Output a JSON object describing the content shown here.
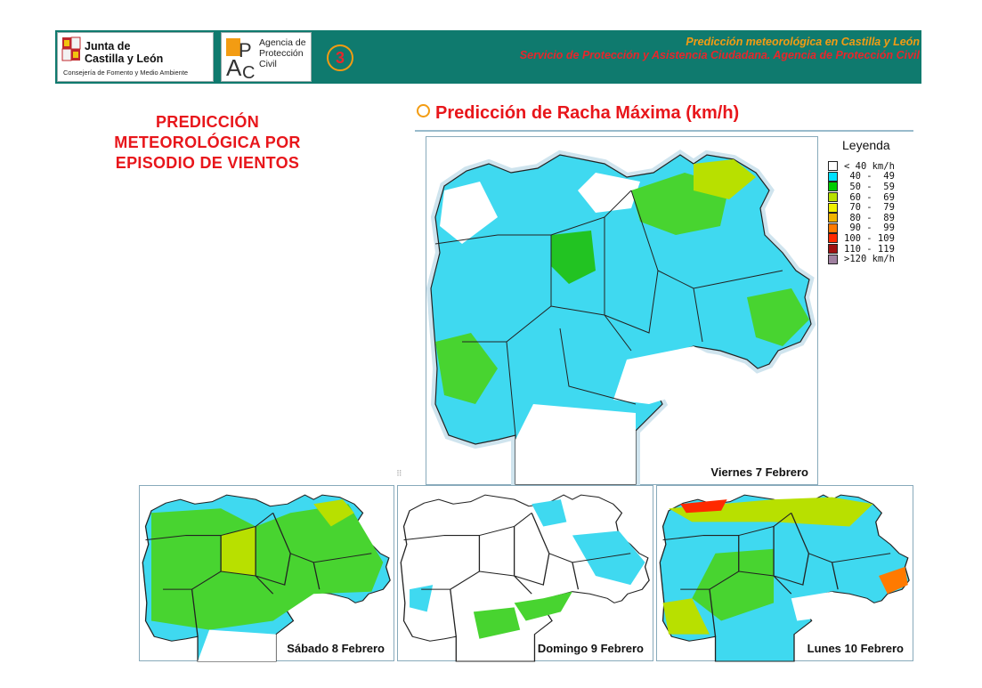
{
  "header": {
    "org_name": "Junta de Castilla y León",
    "org_department": "Consejería de Fomento y Medio Ambiente",
    "agency_name": "Agencia de Protección Civil",
    "agency_initials": "APC",
    "page_number": "3",
    "title_line1": "Predicción meteorológica en Castilla y León",
    "title_line2": "Servicio de Protección y Asistencia Ciudadana. Agencia de Protección Civil"
  },
  "left_title": "PREDICCIÓN METEOROLÓGICA POR EPISODIO DE VIENTOS",
  "section_title": "Predicción de Racha Máxima (km/h)",
  "legend": {
    "title": "Leyenda",
    "items": [
      {
        "label": "< 40 km/h",
        "color": "#ffffff"
      },
      {
        "label": " 40 -  49",
        "color": "#00e0ff"
      },
      {
        "label": " 50 -  59",
        "color": "#00cc00"
      },
      {
        "label": " 60 -  69",
        "color": "#b8e000"
      },
      {
        "label": " 70 -  79",
        "color": "#f0f000"
      },
      {
        "label": " 80 -  89",
        "color": "#f0b400"
      },
      {
        "label": " 90 -  99",
        "color": "#ff7a00"
      },
      {
        "label": "100 - 109",
        "color": "#ff2a00"
      },
      {
        "label": "110 - 119",
        "color": "#a01010"
      },
      {
        "label": ">120 km/h",
        "color": "#a080a0"
      }
    ]
  },
  "maps": {
    "main": {
      "label": "Viernes 7 Febrero"
    },
    "day2": {
      "label": "Sábado 8 Febrero"
    },
    "day3": {
      "label": "Domingo 9 Febrero"
    },
    "day4": {
      "label": "Lunes 10 Febrero"
    }
  },
  "colors": {
    "header_band": "#0f7a6e",
    "title_red": "#e8161b",
    "accent_orange": "#f39c12"
  }
}
